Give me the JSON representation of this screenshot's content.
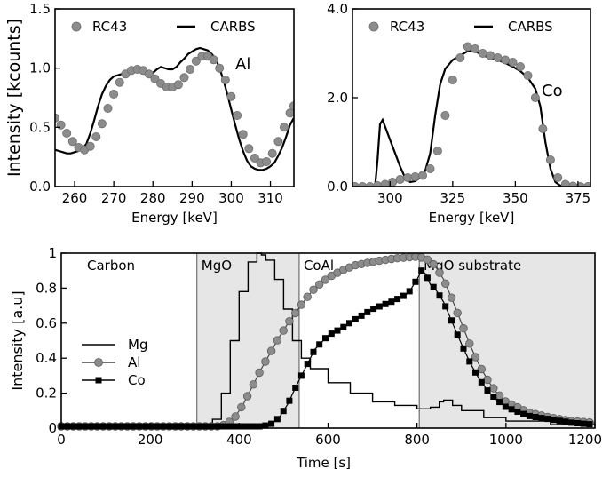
{
  "chart_data": [
    {
      "type": "line",
      "panel": "top-left",
      "element_tag": "Al",
      "xlabel": "Energy [keV]",
      "ylabel": "Intensity [kcounts]",
      "xlim": [
        255,
        316
      ],
      "ylim": [
        0,
        1.5
      ],
      "xticks": [
        "260",
        "270",
        "280",
        "290",
        "300",
        "310"
      ],
      "yticks": [
        "0.0",
        "0.5",
        "1.0",
        "1.5"
      ],
      "legend": [
        "RC43",
        "CARBS"
      ],
      "legend_position": "top",
      "series": [
        {
          "name": "RC43",
          "style": "markers",
          "x": [
            255,
            256.5,
            258,
            259.5,
            261,
            262.5,
            264,
            265.5,
            267,
            268.5,
            270,
            271.5,
            273,
            274.5,
            276,
            277.5,
            279,
            280.5,
            282,
            283.5,
            285,
            286.5,
            288,
            289.5,
            291,
            292.5,
            294,
            295.5,
            297,
            298.5,
            300,
            301.5,
            303,
            304.5,
            306,
            307.5,
            309,
            310.5,
            312,
            313.5,
            315,
            316
          ],
          "y": [
            0.58,
            0.52,
            0.45,
            0.38,
            0.33,
            0.31,
            0.34,
            0.42,
            0.53,
            0.66,
            0.78,
            0.88,
            0.95,
            0.98,
            0.99,
            0.98,
            0.95,
            0.91,
            0.87,
            0.84,
            0.84,
            0.86,
            0.92,
            0.99,
            1.06,
            1.1,
            1.1,
            1.07,
            1.0,
            0.9,
            0.76,
            0.6,
            0.44,
            0.32,
            0.24,
            0.2,
            0.21,
            0.28,
            0.38,
            0.5,
            0.62,
            0.68
          ]
        },
        {
          "name": "CARBS",
          "style": "line",
          "x": [
            255,
            256,
            257,
            258,
            259,
            260,
            261,
            262,
            263,
            264,
            265,
            266,
            267,
            268,
            269,
            270,
            271,
            272,
            273,
            274,
            275,
            276,
            277,
            278,
            279,
            280,
            281,
            282,
            283,
            284,
            285,
            286,
            287,
            288,
            289,
            290,
            291,
            292,
            293,
            294,
            295,
            296,
            297,
            298,
            299,
            300,
            301,
            302,
            303,
            304,
            305,
            306,
            307,
            308,
            309,
            310,
            311,
            312,
            313,
            314,
            315,
            316
          ],
          "y": [
            0.31,
            0.3,
            0.29,
            0.28,
            0.28,
            0.29,
            0.3,
            0.32,
            0.36,
            0.45,
            0.56,
            0.68,
            0.78,
            0.85,
            0.9,
            0.93,
            0.94,
            0.95,
            0.96,
            0.98,
            0.99,
            0.99,
            0.97,
            0.95,
            0.95,
            0.96,
            0.99,
            1.01,
            1.0,
            0.99,
            0.99,
            1.01,
            1.05,
            1.08,
            1.12,
            1.14,
            1.16,
            1.17,
            1.16,
            1.15,
            1.12,
            1.08,
            1.0,
            0.9,
            0.78,
            0.65,
            0.52,
            0.4,
            0.3,
            0.22,
            0.17,
            0.15,
            0.14,
            0.14,
            0.15,
            0.17,
            0.2,
            0.26,
            0.33,
            0.42,
            0.52,
            0.58
          ]
        }
      ]
    },
    {
      "type": "line",
      "panel": "top-right",
      "element_tag": "Co",
      "xlabel": "Energy [keV]",
      "ylabel": "",
      "xlim": [
        285,
        380
      ],
      "ylim": [
        0,
        4.0
      ],
      "xticks": [
        "300",
        "325",
        "350",
        "375"
      ],
      "yticks": [
        "0.0",
        "2.0",
        "4.0"
      ],
      "legend": [
        "RC43",
        "CARBS"
      ],
      "legend_position": "top",
      "series": [
        {
          "name": "RC43",
          "style": "markers",
          "x": [
            286,
            289,
            292,
            295,
            298,
            301,
            304,
            307,
            310,
            313,
            316,
            319,
            322,
            325,
            328,
            331,
            334,
            337,
            340,
            343,
            346,
            349,
            352,
            355,
            358,
            361,
            364,
            367,
            370,
            373,
            376,
            379
          ],
          "y": [
            0.0,
            0.0,
            0.0,
            0.02,
            0.05,
            0.1,
            0.16,
            0.2,
            0.22,
            0.25,
            0.4,
            0.8,
            1.6,
            2.4,
            2.9,
            3.15,
            3.1,
            3.0,
            2.95,
            2.9,
            2.85,
            2.8,
            2.7,
            2.5,
            2.0,
            1.3,
            0.6,
            0.2,
            0.05,
            0.01,
            0.0,
            0.0
          ]
        },
        {
          "name": "CARBS",
          "style": "line",
          "x": [
            285,
            288,
            291,
            294,
            295,
            296,
            297,
            298,
            300,
            302,
            304,
            306,
            308,
            310,
            312,
            314,
            316,
            318,
            320,
            322,
            325,
            328,
            331,
            334,
            337,
            340,
            343,
            346,
            349,
            352,
            355,
            358,
            360,
            362,
            364,
            366,
            368,
            372,
            376,
            380
          ],
          "y": [
            0.0,
            0.0,
            0.0,
            0.0,
            0.6,
            1.4,
            1.5,
            1.35,
            1.05,
            0.75,
            0.45,
            0.2,
            0.1,
            0.12,
            0.2,
            0.35,
            0.75,
            1.6,
            2.3,
            2.65,
            2.85,
            2.95,
            3.05,
            3.05,
            2.95,
            2.9,
            2.85,
            2.78,
            2.7,
            2.6,
            2.45,
            2.2,
            1.8,
            1.0,
            0.4,
            0.1,
            0.02,
            0.0,
            0.0,
            0.0
          ]
        }
      ]
    },
    {
      "type": "line",
      "panel": "bottom",
      "xlabel": "Time [s]",
      "ylabel": "Intensity [a.u]",
      "xlim": [
        0,
        1200
      ],
      "ylim": [
        0,
        1
      ],
      "xticks": [
        "0",
        "200",
        "400",
        "600",
        "800",
        "1000",
        "1200"
      ],
      "yticks": [
        "0",
        "0.2",
        "0.4",
        "0.6",
        "0.8",
        "1"
      ],
      "legend": [
        "Mg",
        "Al",
        "Co"
      ],
      "legend_position": "middle-left",
      "regions": [
        {
          "label": "Carbon",
          "x": [
            0,
            305
          ],
          "shaded": false
        },
        {
          "label": "MgO",
          "x": [
            305,
            535
          ],
          "shaded": true
        },
        {
          "label": "CoAl",
          "x": [
            535,
            805
          ],
          "shaded": false
        },
        {
          "label": "MgO substrate",
          "x": [
            805,
            1200
          ],
          "shaded": true
        }
      ],
      "series": [
        {
          "name": "Mg",
          "style": "line",
          "x": [
            0,
            300,
            340,
            360,
            380,
            400,
            420,
            440,
            450,
            460,
            480,
            500,
            520,
            540,
            560,
            600,
            650,
            700,
            750,
            800,
            830,
            850,
            860,
            880,
            900,
            950,
            1000,
            1100,
            1200
          ],
          "y": [
            0.01,
            0.01,
            0.05,
            0.2,
            0.5,
            0.78,
            0.95,
            1.0,
            0.99,
            0.96,
            0.85,
            0.68,
            0.5,
            0.4,
            0.34,
            0.26,
            0.2,
            0.15,
            0.13,
            0.11,
            0.12,
            0.15,
            0.16,
            0.13,
            0.1,
            0.06,
            0.04,
            0.02,
            0.01
          ]
        },
        {
          "name": "Al",
          "style": "line-markers",
          "x": [
            0,
            350,
            370,
            390,
            410,
            430,
            450,
            470,
            490,
            510,
            530,
            550,
            570,
            600,
            630,
            660,
            700,
            750,
            800,
            820,
            840,
            860,
            880,
            900,
            920,
            940,
            960,
            980,
            1000,
            1050,
            1100,
            1150,
            1200
          ],
          "y": [
            0.01,
            0.01,
            0.02,
            0.06,
            0.14,
            0.24,
            0.34,
            0.43,
            0.52,
            0.6,
            0.67,
            0.74,
            0.8,
            0.86,
            0.9,
            0.93,
            0.95,
            0.97,
            0.98,
            0.97,
            0.93,
            0.85,
            0.73,
            0.6,
            0.47,
            0.36,
            0.27,
            0.2,
            0.15,
            0.09,
            0.06,
            0.04,
            0.03
          ]
        },
        {
          "name": "Co",
          "style": "line-markers",
          "x": [
            0,
            450,
            470,
            490,
            510,
            530,
            550,
            570,
            600,
            630,
            660,
            700,
            750,
            780,
            800,
            810,
            820,
            830,
            840,
            860,
            880,
            900,
            920,
            940,
            960,
            980,
            1000,
            1050,
            1100,
            1150,
            1200
          ],
          "y": [
            0.01,
            0.01,
            0.02,
            0.06,
            0.14,
            0.25,
            0.35,
            0.45,
            0.53,
            0.57,
            0.62,
            0.68,
            0.73,
            0.77,
            0.85,
            0.9,
            0.88,
            0.82,
            0.8,
            0.72,
            0.6,
            0.48,
            0.37,
            0.28,
            0.21,
            0.16,
            0.12,
            0.07,
            0.05,
            0.03,
            0.02
          ]
        }
      ]
    }
  ]
}
